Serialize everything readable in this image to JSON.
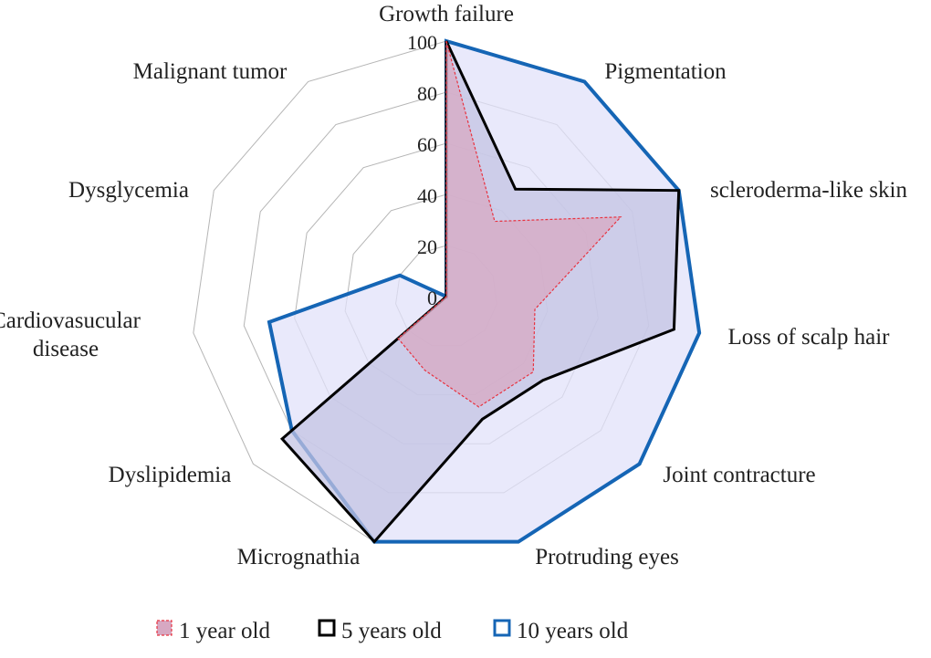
{
  "chart_data": {
    "type": "radar",
    "categories": [
      "Growth failure",
      "Pigmentation",
      "scleroderma-like skin",
      "Loss of scalp hair",
      "Joint contracture",
      "Protruding eyes",
      "Micrognathia",
      "Dyslipidemia",
      "Cardiovasucular|disease",
      "Dysglycemia",
      "Malignant tumor"
    ],
    "ticks": [
      "0",
      "20",
      "40",
      "60",
      "80",
      "100"
    ],
    "rlim": [
      0,
      100
    ],
    "series": [
      {
        "name": "1 year old",
        "values": [
          100,
          35,
          75,
          35,
          45,
          45,
          30,
          25,
          0,
          0,
          0
        ],
        "stroke": "#e8323f",
        "fill": "#d7a8c2",
        "dashed": true
      },
      {
        "name": "5 years old",
        "values": [
          100,
          50,
          100,
          90,
          50,
          50,
          100,
          85,
          0,
          0,
          0
        ],
        "stroke": "#000000",
        "fill": "#c3c3e3",
        "dashed": false
      },
      {
        "name": "10 years old",
        "values": [
          100,
          100,
          100,
          100,
          100,
          100,
          100,
          80,
          70,
          20,
          0
        ],
        "stroke": "#1565b5",
        "fill": "#e2e2fa",
        "dashed": false
      }
    ],
    "legend_position": "bottom",
    "grid": true
  }
}
